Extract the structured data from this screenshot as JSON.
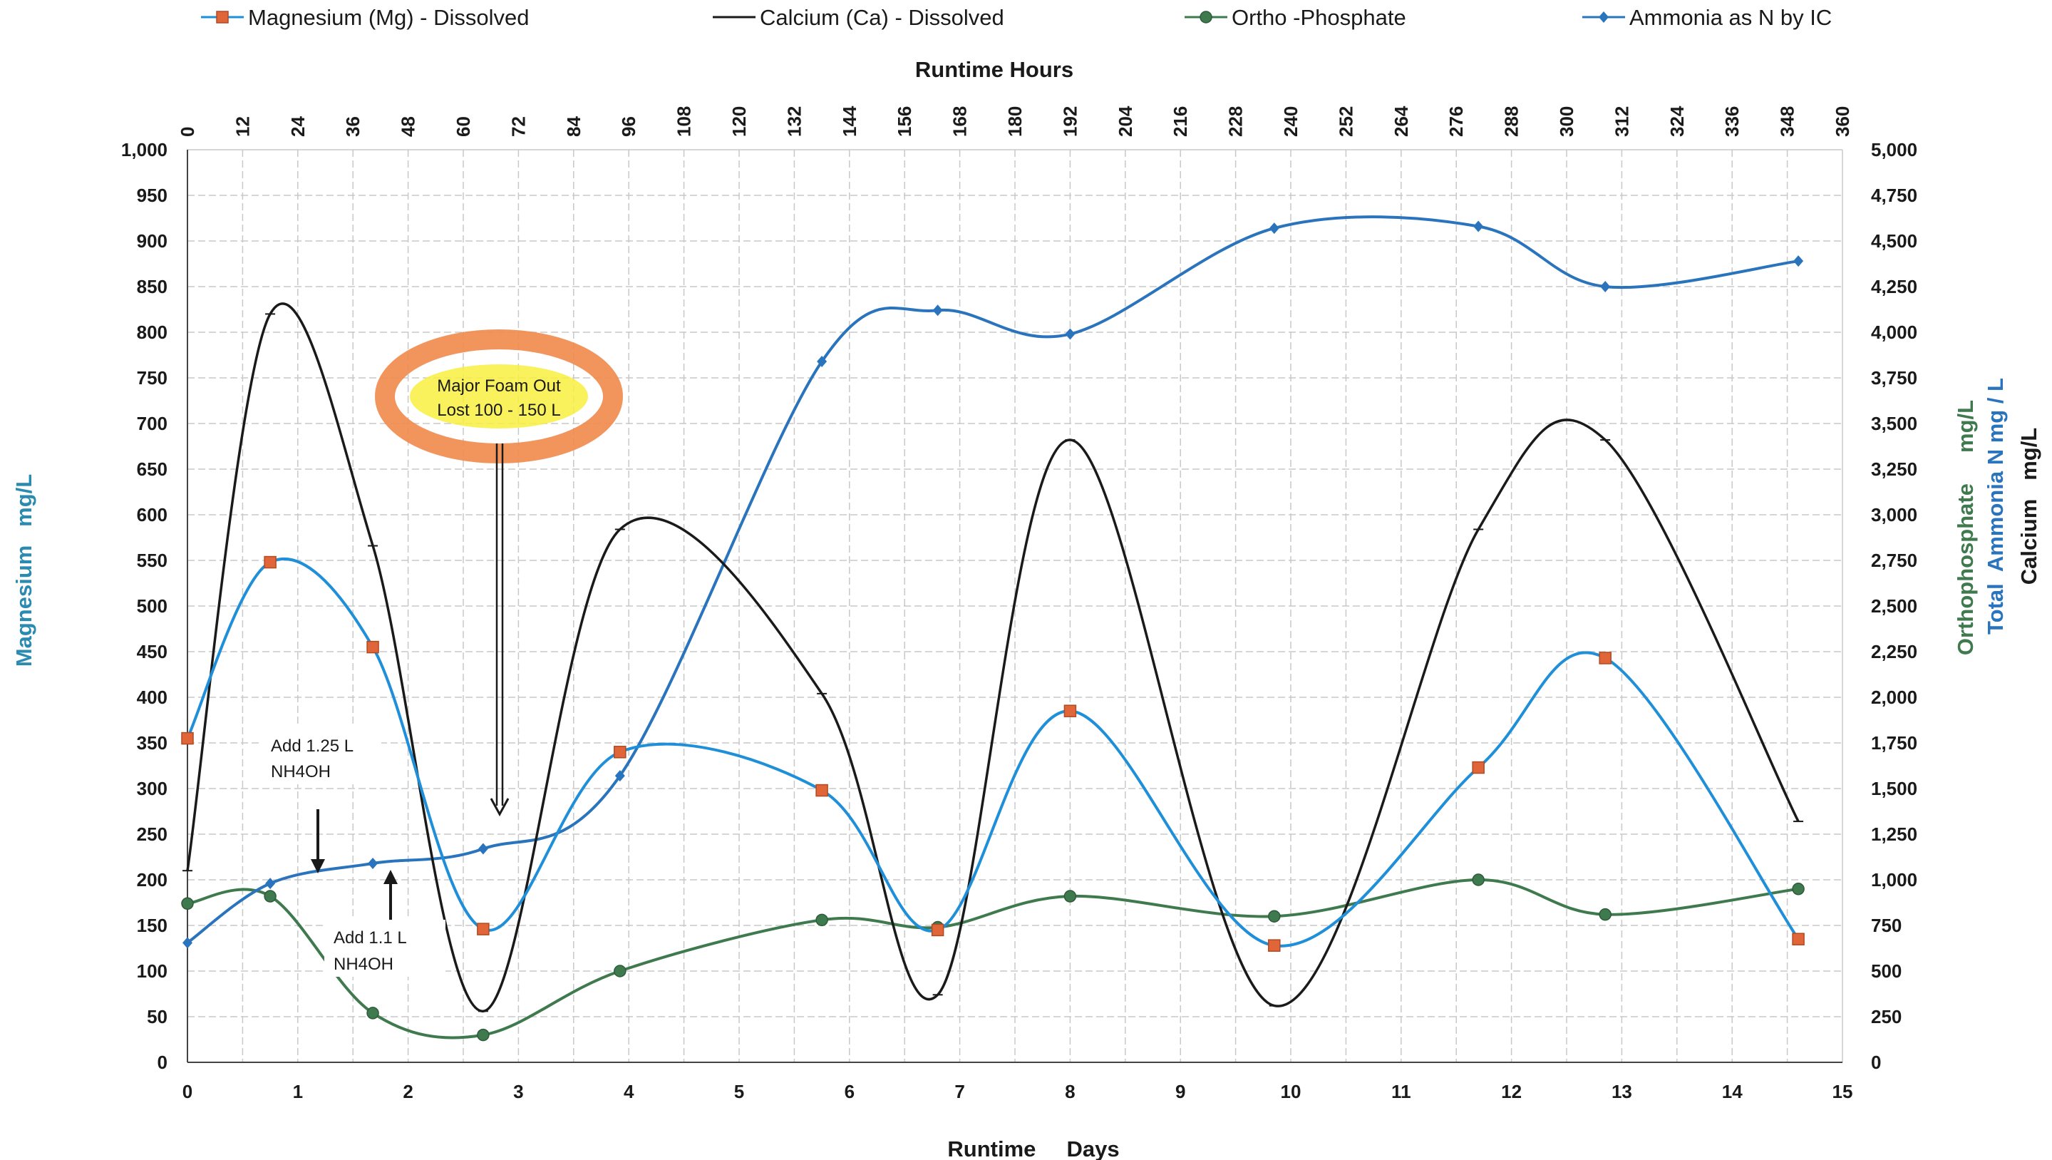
{
  "chart_data": {
    "type": "line",
    "title": "",
    "legend": {
      "placement": "top",
      "entries": [
        {
          "label": "Magnesium (Mg) - Dissolved",
          "color": "#1e8fd8",
          "marker": "square",
          "marker_color": "#e0663a"
        },
        {
          "label": "Calcium (Ca) - Dissolved",
          "color": "#1a1a1a",
          "marker": "dash",
          "marker_color": "#1a1a1a"
        },
        {
          "label": "Ortho -Phosphate",
          "color": "#3f7a4e",
          "marker": "circle",
          "marker_color": "#3f7a4e"
        },
        {
          "label": "Ammonia as N by IC",
          "color": "#2a74bd",
          "marker": "diamond",
          "marker_color": "#2a74bd"
        }
      ]
    },
    "xlabel": "Runtime     Days",
    "x_top_label": "Runtime Hours",
    "ylabel_left": "Magnesium   mg/L",
    "ylabel_right": {
      "line1": "Calcium   mg/L",
      "line2": "Total  Ammonia N mg / L",
      "line3": "Orthophosphate     mg/L"
    },
    "xlim": [
      0,
      15
    ],
    "x_top_lim": [
      0,
      360
    ],
    "ylim_left": [
      0,
      1000
    ],
    "ylim_right": [
      0,
      5000
    ],
    "grid": true,
    "x_ticks": [
      "0",
      "1",
      "2",
      "3",
      "4",
      "5",
      "6",
      "7",
      "8",
      "9",
      "10",
      "11",
      "12",
      "13",
      "14",
      "15"
    ],
    "x_top_ticks": [
      "0",
      "12",
      "24",
      "36",
      "48",
      "60",
      "72",
      "84",
      "96",
      "108",
      "120",
      "132",
      "144",
      "156",
      "168",
      "180",
      "192",
      "204",
      "216",
      "228",
      "240",
      "252",
      "264",
      "276",
      "288",
      "300",
      "312",
      "324",
      "336",
      "348",
      "360"
    ],
    "y_left_ticks": [
      "0",
      "50",
      "100",
      "150",
      "200",
      "250",
      "300",
      "350",
      "400",
      "450",
      "500",
      "550",
      "600",
      "650",
      "700",
      "750",
      "800",
      "850",
      "900",
      "950",
      "1,000"
    ],
    "y_right_ticks": [
      "0",
      "250",
      "500",
      "750",
      "1,000",
      "1,250",
      "1,500",
      "1,750",
      "2,000",
      "2,250",
      "2,500",
      "2,750",
      "3,000",
      "3,250",
      "3,500",
      "3,750",
      "4,000",
      "4,250",
      "4,500",
      "4,750",
      "5,000"
    ],
    "series": [
      {
        "name": "Magnesium (Mg) - Dissolved",
        "axis": "left",
        "x": [
          0,
          0.75,
          1.68,
          2.68,
          3.92,
          5.75,
          6.8,
          8.0,
          9.85,
          11.7,
          12.85,
          14.6
        ],
        "y": [
          355,
          548,
          455,
          146,
          340,
          298,
          145,
          385,
          128,
          323,
          443,
          135
        ]
      },
      {
        "name": "Calcium (Ca) - Dissolved",
        "axis": "right",
        "x": [
          0,
          0.75,
          1.68,
          2.68,
          3.92,
          5.75,
          6.8,
          8.0,
          9.85,
          11.7,
          12.85,
          14.6
        ],
        "y": [
          1050,
          4100,
          2830,
          280,
          2920,
          2020,
          370,
          3410,
          310,
          2920,
          3410,
          1320
        ]
      },
      {
        "name": "Ortho -Phosphate",
        "axis": "right",
        "x": [
          0,
          0.75,
          1.68,
          2.68,
          3.92,
          5.75,
          6.8,
          8.0,
          9.85,
          11.7,
          12.85,
          14.6
        ],
        "y": [
          870,
          910,
          270,
          150,
          500,
          780,
          740,
          910,
          800,
          1000,
          810,
          950
        ]
      },
      {
        "name": "Ammonia as N by IC",
        "axis": "right",
        "x": [
          0,
          0.75,
          1.68,
          2.68,
          3.92,
          5.75,
          6.8,
          8.0,
          9.85,
          11.7,
          12.85,
          14.6
        ],
        "y": [
          655,
          980,
          1090,
          1170,
          1570,
          3840,
          4120,
          3990,
          4570,
          4580,
          4250,
          4390
        ]
      }
    ],
    "annotations": [
      {
        "text_lines": [
          "Add 1.25 L",
          "NH4OH"
        ]
      },
      {
        "text_lines": [
          "Add 1.1 L",
          "NH4OH"
        ]
      },
      {
        "text_lines": [
          "Major Foam Out",
          "Lost 100 - 150 L"
        ]
      }
    ]
  }
}
